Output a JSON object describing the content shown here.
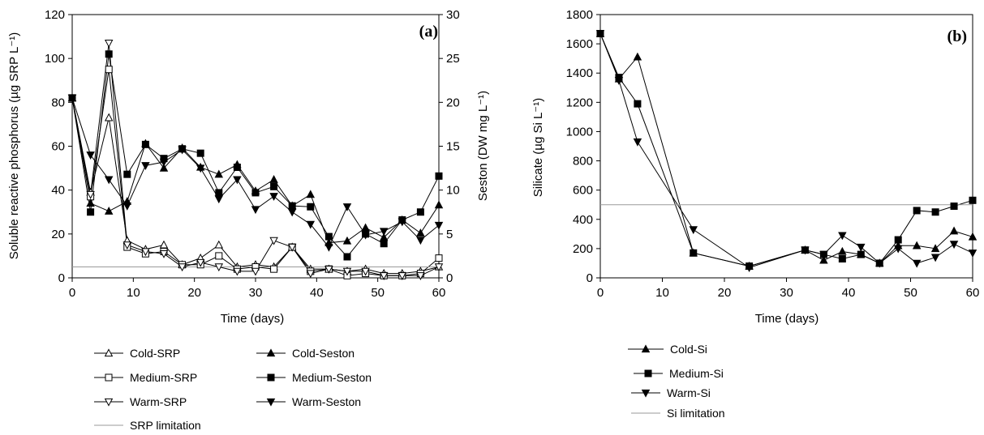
{
  "chart_data": [
    {
      "type": "line",
      "panel_label": "(a)",
      "xlabel": "Time (days)",
      "ylabel_left": "Soluble reactive phosphorus (µg SRP L⁻¹)",
      "ylabel_right": "Seston (DW mg L⁻¹)",
      "xlim": [
        0,
        60
      ],
      "xticks": [
        0,
        10,
        20,
        30,
        40,
        50,
        60
      ],
      "ylim_left": [
        0,
        120
      ],
      "yticks_left": [
        0,
        20,
        40,
        60,
        80,
        100,
        120
      ],
      "ylim_right": [
        0,
        30
      ],
      "yticks_right": [
        0,
        5,
        10,
        15,
        20,
        25,
        30
      ],
      "legend_position": "bottom",
      "series": [
        {
          "name": "Cold-SRP",
          "axis": "left",
          "marker": "triangle-up-open",
          "x": [
            0,
            3,
            6,
            9,
            12,
            15,
            18,
            21,
            24,
            27,
            30,
            33,
            36,
            39,
            42,
            45,
            48,
            51,
            54,
            57,
            60
          ],
          "y": [
            82,
            39,
            73,
            17,
            13,
            15,
            6,
            9,
            15,
            5,
            6,
            5,
            14,
            4,
            4,
            3,
            4,
            2,
            2,
            3,
            5
          ]
        },
        {
          "name": "Medium-SRP",
          "axis": "left",
          "marker": "square-open",
          "x": [
            0,
            3,
            6,
            9,
            12,
            15,
            18,
            21,
            24,
            27,
            30,
            33,
            36,
            39,
            42,
            45,
            48,
            51,
            54,
            57,
            60
          ],
          "y": [
            82,
            37,
            95,
            14,
            11,
            12,
            6,
            6,
            10,
            4,
            5,
            4,
            14,
            3,
            4,
            1,
            2,
            1,
            1,
            2,
            9
          ]
        },
        {
          "name": "Warm-SRP",
          "axis": "left",
          "marker": "triangle-down-open",
          "x": [
            0,
            3,
            6,
            9,
            12,
            15,
            18,
            21,
            24,
            27,
            30,
            33,
            36,
            39,
            42,
            45,
            48,
            51,
            54,
            57,
            60
          ],
          "y": [
            82,
            38,
            107,
            15,
            12,
            11,
            5,
            7,
            5,
            3,
            3,
            17,
            14,
            2,
            4,
            3,
            3,
            1,
            1,
            1,
            5
          ]
        },
        {
          "name": "Cold-Seston",
          "axis": "right",
          "marker": "triangle-up-filled",
          "x": [
            0,
            3,
            6,
            9,
            12,
            15,
            18,
            21,
            24,
            27,
            30,
            33,
            36,
            39,
            42,
            45,
            48,
            51,
            54,
            57,
            60
          ],
          "y": [
            20.5,
            8.5,
            7.6,
            8.7,
            15.3,
            12.5,
            14.8,
            12.6,
            11.8,
            12.9,
            9.9,
            11.2,
            8.2,
            9.5,
            4.0,
            4.2,
            5.7,
            4.6,
            6.6,
            5.1,
            8.3
          ]
        },
        {
          "name": "Medium-Seston",
          "axis": "right",
          "marker": "square-filled",
          "x": [
            0,
            3,
            6,
            9,
            12,
            15,
            18,
            21,
            24,
            27,
            30,
            33,
            36,
            39,
            42,
            45,
            48,
            51,
            54,
            57,
            60
          ],
          "y": [
            20.5,
            7.5,
            25.5,
            11.8,
            15.2,
            13.6,
            14.7,
            14.2,
            9.7,
            12.6,
            9.7,
            10.4,
            8.2,
            8.1,
            4.7,
            2.4,
            5.0,
            3.9,
            6.6,
            7.5,
            11.6
          ]
        },
        {
          "name": "Warm-Seston",
          "axis": "right",
          "marker": "triangle-down-filled",
          "x": [
            0,
            3,
            6,
            9,
            12,
            15,
            18,
            21,
            24,
            27,
            30,
            33,
            36,
            39,
            42,
            45,
            48,
            51,
            54,
            57,
            60
          ],
          "y": [
            20.5,
            14.0,
            11.2,
            8.2,
            12.8,
            13.2,
            14.6,
            12.5,
            9.0,
            11.2,
            7.8,
            9.3,
            7.5,
            6.1,
            3.5,
            8.1,
            4.9,
            5.3,
            6.4,
            4.3,
            6.0
          ]
        },
        {
          "name": "SRP limitation",
          "axis": "left",
          "marker": "none",
          "x": [
            0,
            60
          ],
          "y": [
            5,
            5
          ]
        }
      ]
    },
    {
      "type": "line",
      "panel_label": "(b)",
      "xlabel": "Time (days)",
      "ylabel": "Silicate (µg Si L⁻¹)",
      "xlim": [
        0,
        60
      ],
      "xticks": [
        0,
        10,
        20,
        30,
        40,
        50,
        60
      ],
      "ylim": [
        0,
        1800
      ],
      "yticks": [
        0,
        200,
        400,
        600,
        800,
        1000,
        1200,
        1400,
        1600,
        1800
      ],
      "legend_position": "bottom-left",
      "series": [
        {
          "name": "Cold-Si",
          "marker": "triangle-up-filled",
          "x": [
            0,
            3,
            6,
            15,
            24,
            33,
            36,
            39,
            42,
            45,
            48,
            51,
            54,
            57,
            60
          ],
          "y": [
            1670,
            1360,
            1510,
            170,
            80,
            190,
            120,
            180,
            160,
            100,
            220,
            220,
            200,
            320,
            280
          ]
        },
        {
          "name": "Medium-Si",
          "marker": "square-filled",
          "x": [
            0,
            3,
            6,
            15,
            24,
            33,
            36,
            39,
            42,
            45,
            48,
            51,
            54,
            57,
            60
          ],
          "y": [
            1670,
            1370,
            1190,
            170,
            80,
            190,
            160,
            130,
            160,
            100,
            260,
            460,
            450,
            490,
            530
          ]
        },
        {
          "name": "Warm-Si",
          "marker": "triangle-down-filled",
          "x": [
            0,
            3,
            6,
            15,
            24,
            33,
            36,
            39,
            42,
            45,
            48,
            51,
            54,
            57,
            60
          ],
          "y": [
            1670,
            1350,
            930,
            330,
            70,
            190,
            160,
            290,
            210,
            100,
            200,
            100,
            140,
            230,
            170
          ]
        },
        {
          "name": "Si limitation",
          "marker": "none",
          "x": [
            0,
            60
          ],
          "y": [
            500,
            500
          ]
        }
      ]
    }
  ]
}
